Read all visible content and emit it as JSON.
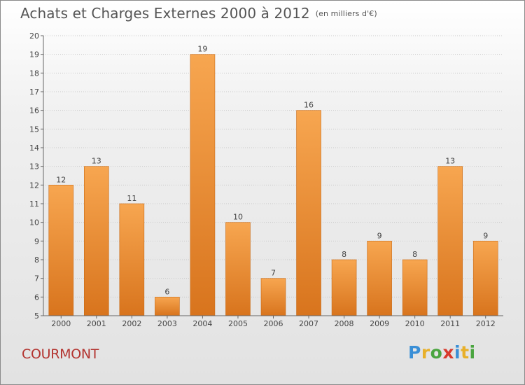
{
  "title": "Achats et Charges Externes 2000 à 2012",
  "subtitle": "(en milliers d'€)",
  "commune": "COURMONT",
  "brand": [
    "P",
    "r",
    "o",
    "x",
    "i",
    "t",
    "i"
  ],
  "colors": {
    "bar_top": "#f7a650",
    "bar_bottom": "#d8741d",
    "commune": "#b3332f"
  },
  "chart_data": {
    "type": "bar",
    "title": "Achats et Charges Externes 2000 à 2012",
    "subtitle": "(en milliers d'€)",
    "categories": [
      "2000",
      "2001",
      "2002",
      "2003",
      "2004",
      "2005",
      "2006",
      "2007",
      "2008",
      "2009",
      "2010",
      "2011",
      "2012"
    ],
    "values": [
      12,
      13,
      11,
      6,
      19,
      10,
      7,
      16,
      8,
      9,
      8,
      13,
      9
    ],
    "ylim": [
      5,
      20
    ],
    "yticks": [
      5,
      6,
      7,
      8,
      9,
      10,
      11,
      12,
      13,
      14,
      15,
      16,
      17,
      18,
      19,
      20
    ],
    "grid": true,
    "xlabel": "",
    "ylabel": ""
  }
}
